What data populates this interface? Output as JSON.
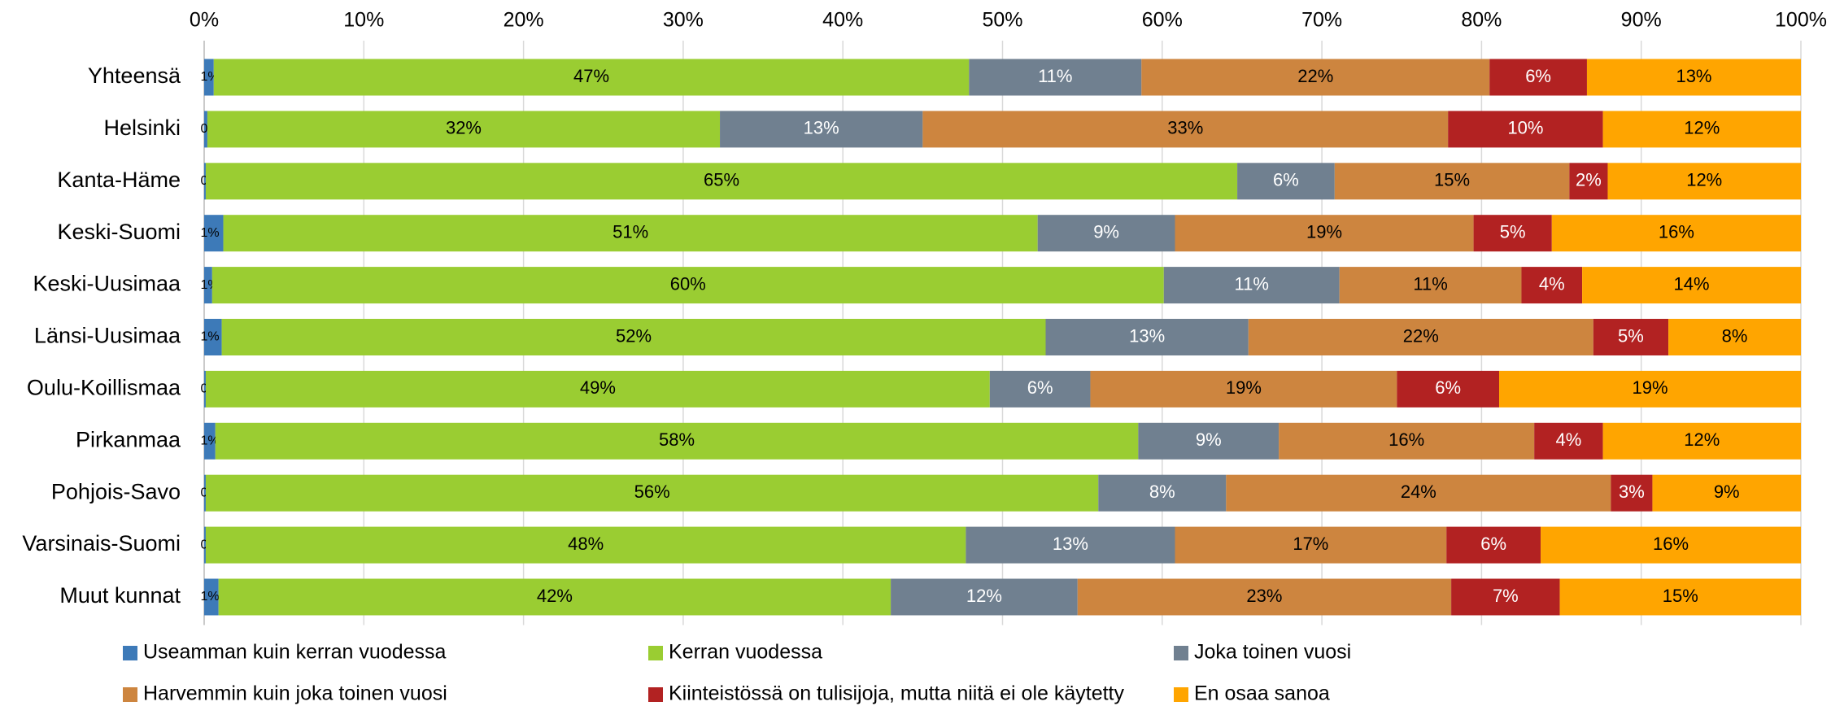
{
  "chart_data": {
    "type": "stacked_bar_horizontal",
    "categories": [
      "Yhteensä",
      "Helsinki",
      "Kanta-Häme",
      "Keski-Suomi",
      "Keski-Uusimaa",
      "Länsi-Uusimaa",
      "Oulu-Koillismaa",
      "Pirkanmaa",
      "Pohjois-Savo",
      "Varsinais-Suomi",
      "Muut kunnat"
    ],
    "series": [
      {
        "name": "Useamman kuin kerran vuodessa",
        "color": "#3d7ab8",
        "values": [
          0.6,
          0.2,
          0.1,
          1.2,
          0.5,
          1.1,
          0.1,
          0.7,
          0.1,
          0.1,
          0.9
        ],
        "value_labels": [
          "1%",
          "0%",
          "0%",
          "1%",
          "1%",
          "1%",
          "0%",
          "1%",
          "0%",
          "0%",
          "1%"
        ]
      },
      {
        "name": "Kerran vuodessa",
        "color": "#9acd32",
        "values": [
          47.3,
          32.1,
          64.6,
          51.0,
          59.6,
          51.6,
          49.1,
          57.8,
          55.9,
          47.6,
          42.1
        ],
        "value_labels": [
          "47%",
          "32%",
          "65%",
          "51%",
          "60%",
          "52%",
          "49%",
          "58%",
          "56%",
          "48%",
          "42%"
        ]
      },
      {
        "name": "Joka toinen vuosi",
        "color": "#708090",
        "values": [
          10.8,
          12.7,
          6.1,
          8.6,
          11.0,
          12.7,
          6.3,
          8.8,
          8.0,
          13.1,
          11.7
        ],
        "value_labels": [
          "11%",
          "13%",
          "6%",
          "9%",
          "11%",
          "13%",
          "6%",
          "9%",
          "8%",
          "13%",
          "12%"
        ]
      },
      {
        "name": "Harvemmin kuin joka toinen vuosi",
        "color": "#cd853f",
        "values": [
          21.8,
          32.9,
          14.7,
          18.7,
          11.4,
          21.6,
          19.2,
          16.0,
          24.1,
          17.0,
          23.4
        ],
        "value_labels": [
          "22%",
          "33%",
          "15%",
          "19%",
          "11%",
          "22%",
          "19%",
          "16%",
          "24%",
          "17%",
          "23%"
        ]
      },
      {
        "name": "Kiinteistössä on tulisijoja, mutta niitä ei ole käytetty",
        "color": "#b22222",
        "values": [
          6.1,
          9.7,
          2.4,
          4.9,
          3.8,
          4.7,
          6.4,
          4.3,
          2.6,
          5.9,
          6.8
        ],
        "value_labels": [
          "6%",
          "10%",
          "2%",
          "5%",
          "4%",
          "5%",
          "6%",
          "4%",
          "3%",
          "6%",
          "7%"
        ]
      },
      {
        "name": "En osaa sanoa",
        "color": "#ffa500",
        "values": [
          13.4,
          12.4,
          12.1,
          15.6,
          13.7,
          8.3,
          18.9,
          12.4,
          9.3,
          16.3,
          15.1
        ],
        "value_labels": [
          "13%",
          "12%",
          "12%",
          "16%",
          "14%",
          "8%",
          "19%",
          "12%",
          "9%",
          "16%",
          "15%"
        ]
      }
    ],
    "xlim": [
      0,
      100
    ],
    "xticks": [
      {
        "value": 0,
        "label": "0%"
      },
      {
        "value": 10,
        "label": "10%"
      },
      {
        "value": 20,
        "label": "20%"
      },
      {
        "value": 30,
        "label": "30%"
      },
      {
        "value": 40,
        "label": "40%"
      },
      {
        "value": 50,
        "label": "50%"
      },
      {
        "value": 60,
        "label": "60%"
      },
      {
        "value": 70,
        "label": "70%"
      },
      {
        "value": 80,
        "label": "80%"
      },
      {
        "value": 90,
        "label": "90%"
      },
      {
        "value": 100,
        "label": "100%"
      }
    ],
    "grid": true,
    "legend": "bottom"
  }
}
